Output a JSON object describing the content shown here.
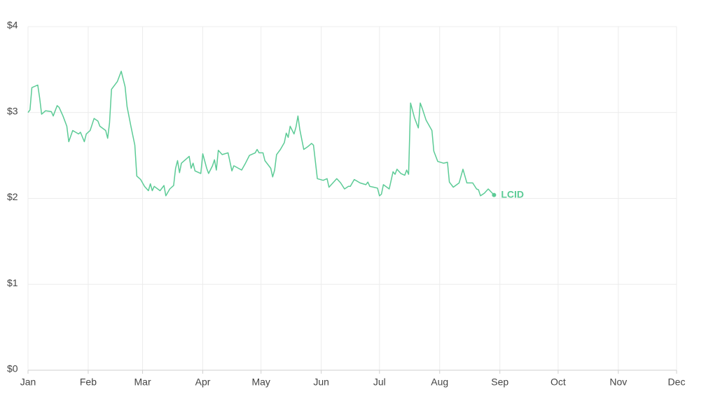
{
  "chart_data": {
    "type": "line",
    "x": [
      0,
      1,
      2,
      5,
      6,
      7,
      9,
      12,
      13,
      15,
      16,
      18,
      20,
      21,
      23,
      26,
      27,
      29,
      30,
      32,
      34,
      36,
      37,
      40,
      41,
      42,
      43,
      46,
      48,
      50,
      51,
      53,
      55,
      56,
      58,
      60,
      62,
      63,
      64,
      65,
      68,
      70,
      71,
      73,
      75,
      76,
      77,
      78,
      79,
      81,
      83,
      84,
      85,
      86,
      89,
      90,
      92,
      93,
      95,
      96,
      97,
      98,
      100,
      103,
      105,
      106,
      110,
      112,
      114,
      117,
      118,
      119,
      121,
      122,
      125,
      126,
      127,
      128,
      130,
      132,
      133,
      134,
      135,
      137,
      138,
      139,
      140,
      142,
      144,
      146,
      147,
      149,
      152,
      154,
      155,
      157,
      159,
      161,
      163,
      165,
      166,
      168,
      171,
      174,
      175,
      176,
      178,
      180,
      181,
      182,
      183,
      186,
      188,
      189,
      190,
      192,
      194,
      195,
      196,
      197,
      199,
      201,
      202,
      203,
      205,
      208,
      209,
      211,
      214,
      216,
      217,
      219,
      222,
      224,
      226,
      229,
      231,
      232,
      233,
      235,
      237,
      240
    ],
    "series": [
      {
        "name": "LCID",
        "color": "#5ccb96",
        "values": [
          3.0,
          3.03,
          3.29,
          3.32,
          3.17,
          2.98,
          3.02,
          3.01,
          2.96,
          3.08,
          3.06,
          2.96,
          2.84,
          2.66,
          2.79,
          2.75,
          2.77,
          2.66,
          2.75,
          2.79,
          2.93,
          2.9,
          2.84,
          2.79,
          2.7,
          2.88,
          3.27,
          3.36,
          3.48,
          3.3,
          3.07,
          2.84,
          2.62,
          2.26,
          2.22,
          2.14,
          2.09,
          2.17,
          2.09,
          2.14,
          2.09,
          2.15,
          2.03,
          2.11,
          2.15,
          2.35,
          2.44,
          2.3,
          2.41,
          2.45,
          2.49,
          2.35,
          2.41,
          2.32,
          2.29,
          2.52,
          2.35,
          2.29,
          2.38,
          2.45,
          2.33,
          2.56,
          2.51,
          2.53,
          2.32,
          2.38,
          2.33,
          2.41,
          2.5,
          2.53,
          2.57,
          2.53,
          2.53,
          2.44,
          2.35,
          2.25,
          2.33,
          2.51,
          2.57,
          2.65,
          2.76,
          2.71,
          2.84,
          2.75,
          2.83,
          2.96,
          2.8,
          2.57,
          2.6,
          2.64,
          2.62,
          2.23,
          2.21,
          2.23,
          2.13,
          2.18,
          2.23,
          2.18,
          2.11,
          2.14,
          2.14,
          2.22,
          2.18,
          2.16,
          2.19,
          2.14,
          2.13,
          2.12,
          2.03,
          2.05,
          2.16,
          2.11,
          2.31,
          2.28,
          2.34,
          2.29,
          2.27,
          2.33,
          2.28,
          3.11,
          2.94,
          2.82,
          3.11,
          3.05,
          2.91,
          2.79,
          2.55,
          2.43,
          2.41,
          2.42,
          2.19,
          2.13,
          2.18,
          2.34,
          2.18,
          2.18,
          2.11,
          2.1,
          2.03,
          2.06,
          2.11,
          2.04
        ]
      }
    ],
    "xlim": [
      0,
      334
    ],
    "xticks": [
      {
        "value": 0,
        "label": "Jan"
      },
      {
        "value": 31,
        "label": "Feb"
      },
      {
        "value": 59,
        "label": "Mar"
      },
      {
        "value": 90,
        "label": "Apr"
      },
      {
        "value": 120,
        "label": "May"
      },
      {
        "value": 151,
        "label": "Jun"
      },
      {
        "value": 181,
        "label": "Jul"
      },
      {
        "value": 212,
        "label": "Aug"
      },
      {
        "value": 243,
        "label": "Sep"
      },
      {
        "value": 273,
        "label": "Oct"
      },
      {
        "value": 304,
        "label": "Nov"
      },
      {
        "value": 334,
        "label": "Dec"
      }
    ],
    "ylim": [
      0,
      4
    ],
    "yticks": [
      {
        "value": 0,
        "label": "$0"
      },
      {
        "value": 1,
        "label": "$1"
      },
      {
        "value": 2,
        "label": "$2"
      },
      {
        "value": 3,
        "label": "$3"
      },
      {
        "value": 4,
        "label": "$4"
      }
    ],
    "grid": true
  }
}
